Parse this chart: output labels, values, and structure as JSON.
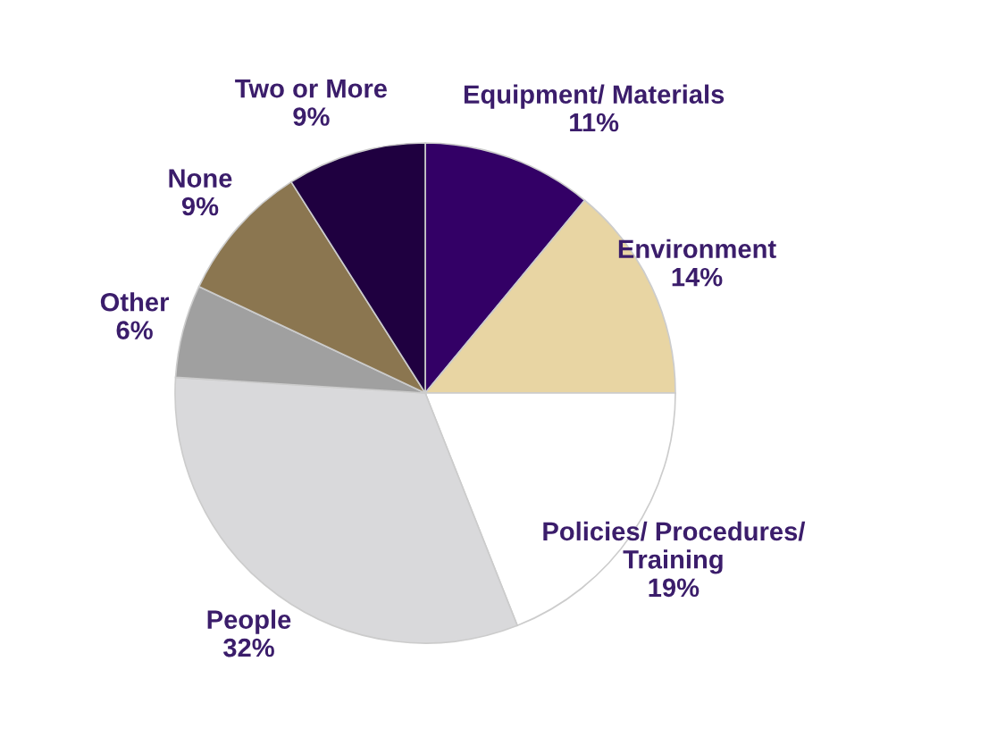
{
  "chart_data": {
    "type": "pie",
    "categories": [
      "Equipment/ Materials",
      "Environment",
      "Policies/ Procedures/\nTraining",
      "People",
      "Other",
      "None",
      "Two or More"
    ],
    "values": [
      11,
      14,
      19,
      32,
      6,
      9,
      9
    ],
    "value_labels": [
      "11%",
      "14%",
      "19%",
      "32%",
      "6%",
      "9%",
      "9%"
    ],
    "colors": [
      "#330066",
      "#e8d5a3",
      "#ffffff",
      "#d9d9db",
      "#a0a0a0",
      "#8b7650",
      "#1f0040"
    ]
  }
}
